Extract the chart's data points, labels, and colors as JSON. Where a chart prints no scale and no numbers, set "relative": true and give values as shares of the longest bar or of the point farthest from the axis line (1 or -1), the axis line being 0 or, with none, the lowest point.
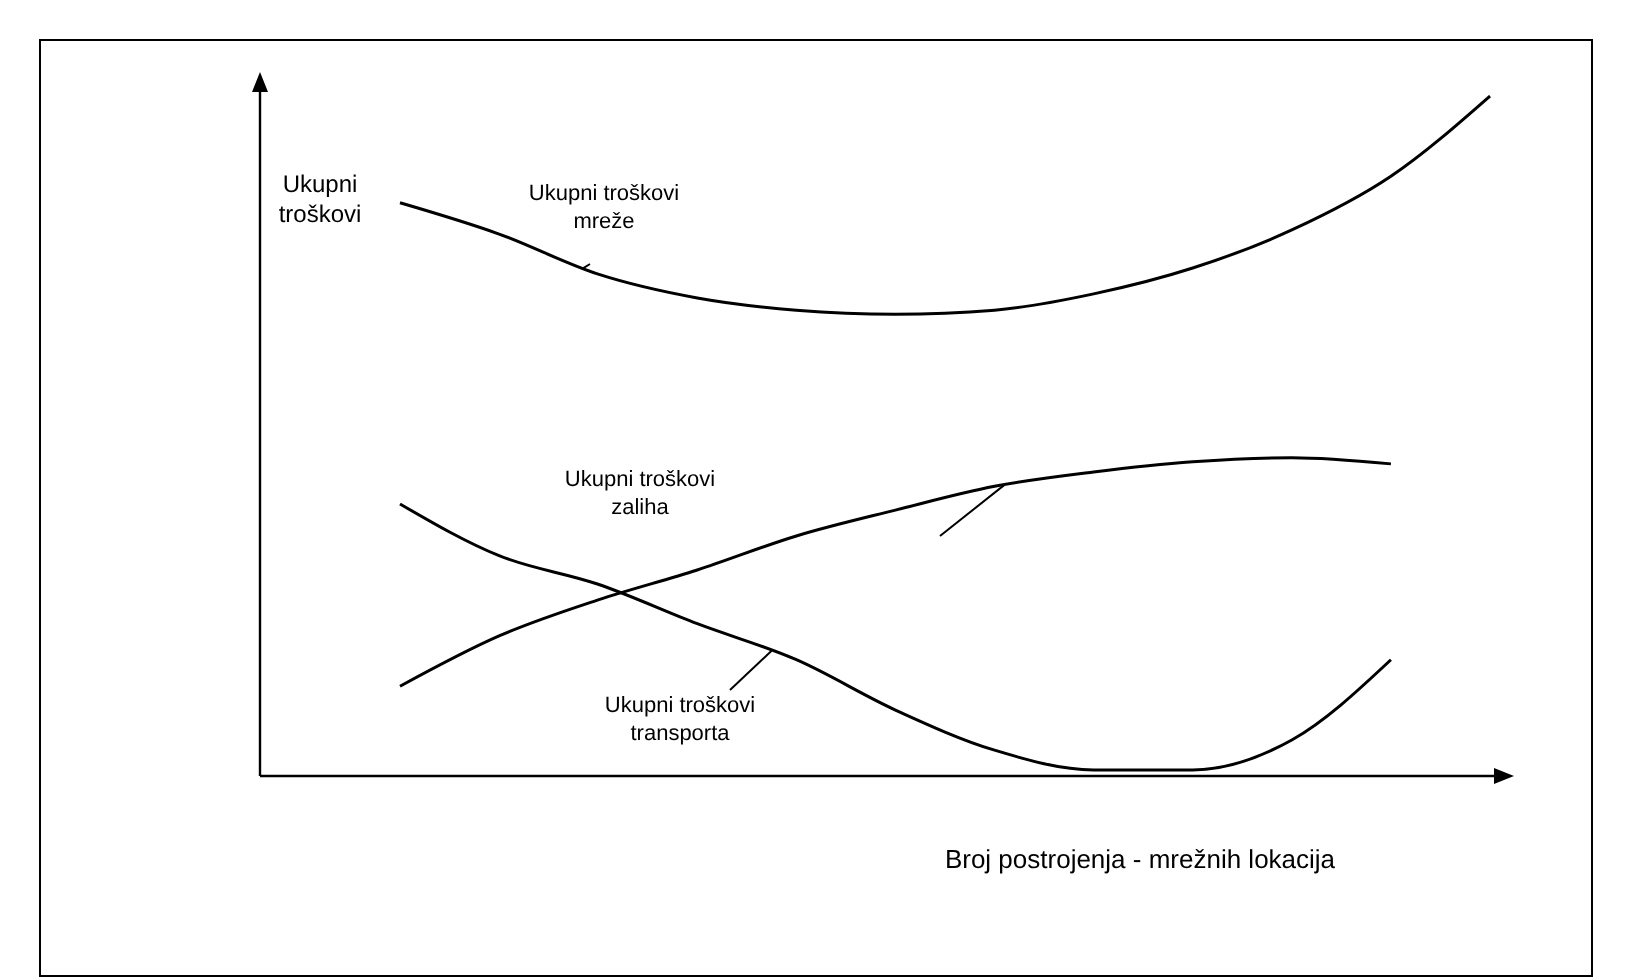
{
  "chart_data": {
    "type": "line",
    "relative": true,
    "xlabel": "Broj postrojenja - mrežnih lokacija",
    "ylabel": "Ukupni troškovi",
    "categories": [
      null,
      null,
      null,
      null,
      null,
      null,
      null,
      null,
      null,
      null,
      null,
      null
    ],
    "marker": "none",
    "line_style": "solid",
    "series": [
      {
        "name": "Ukupni troškovi mreže",
        "color": "#000000",
        "values": [
          0.843,
          0.797,
          0.738,
          0.703,
          0.685,
          0.679,
          0.685,
          0.709,
          0.747,
          0.803,
          0.882,
          1
        ]
      },
      {
        "name": "Ukupni troškovi zaliha",
        "color": "#000000",
        "values": [
          0.132,
          0.206,
          0.259,
          0.303,
          0.353,
          0.391,
          0.426,
          0.447,
          0.462,
          0.468,
          0.459,
          null
        ]
      },
      {
        "name": "Ukupni troškovi transporta",
        "color": "#000000",
        "values": [
          0.4,
          0.324,
          0.282,
          0.224,
          0.171,
          0.097,
          0.038,
          0.009,
          0.009,
          0.053,
          0.171,
          null
        ]
      }
    ]
  }
}
